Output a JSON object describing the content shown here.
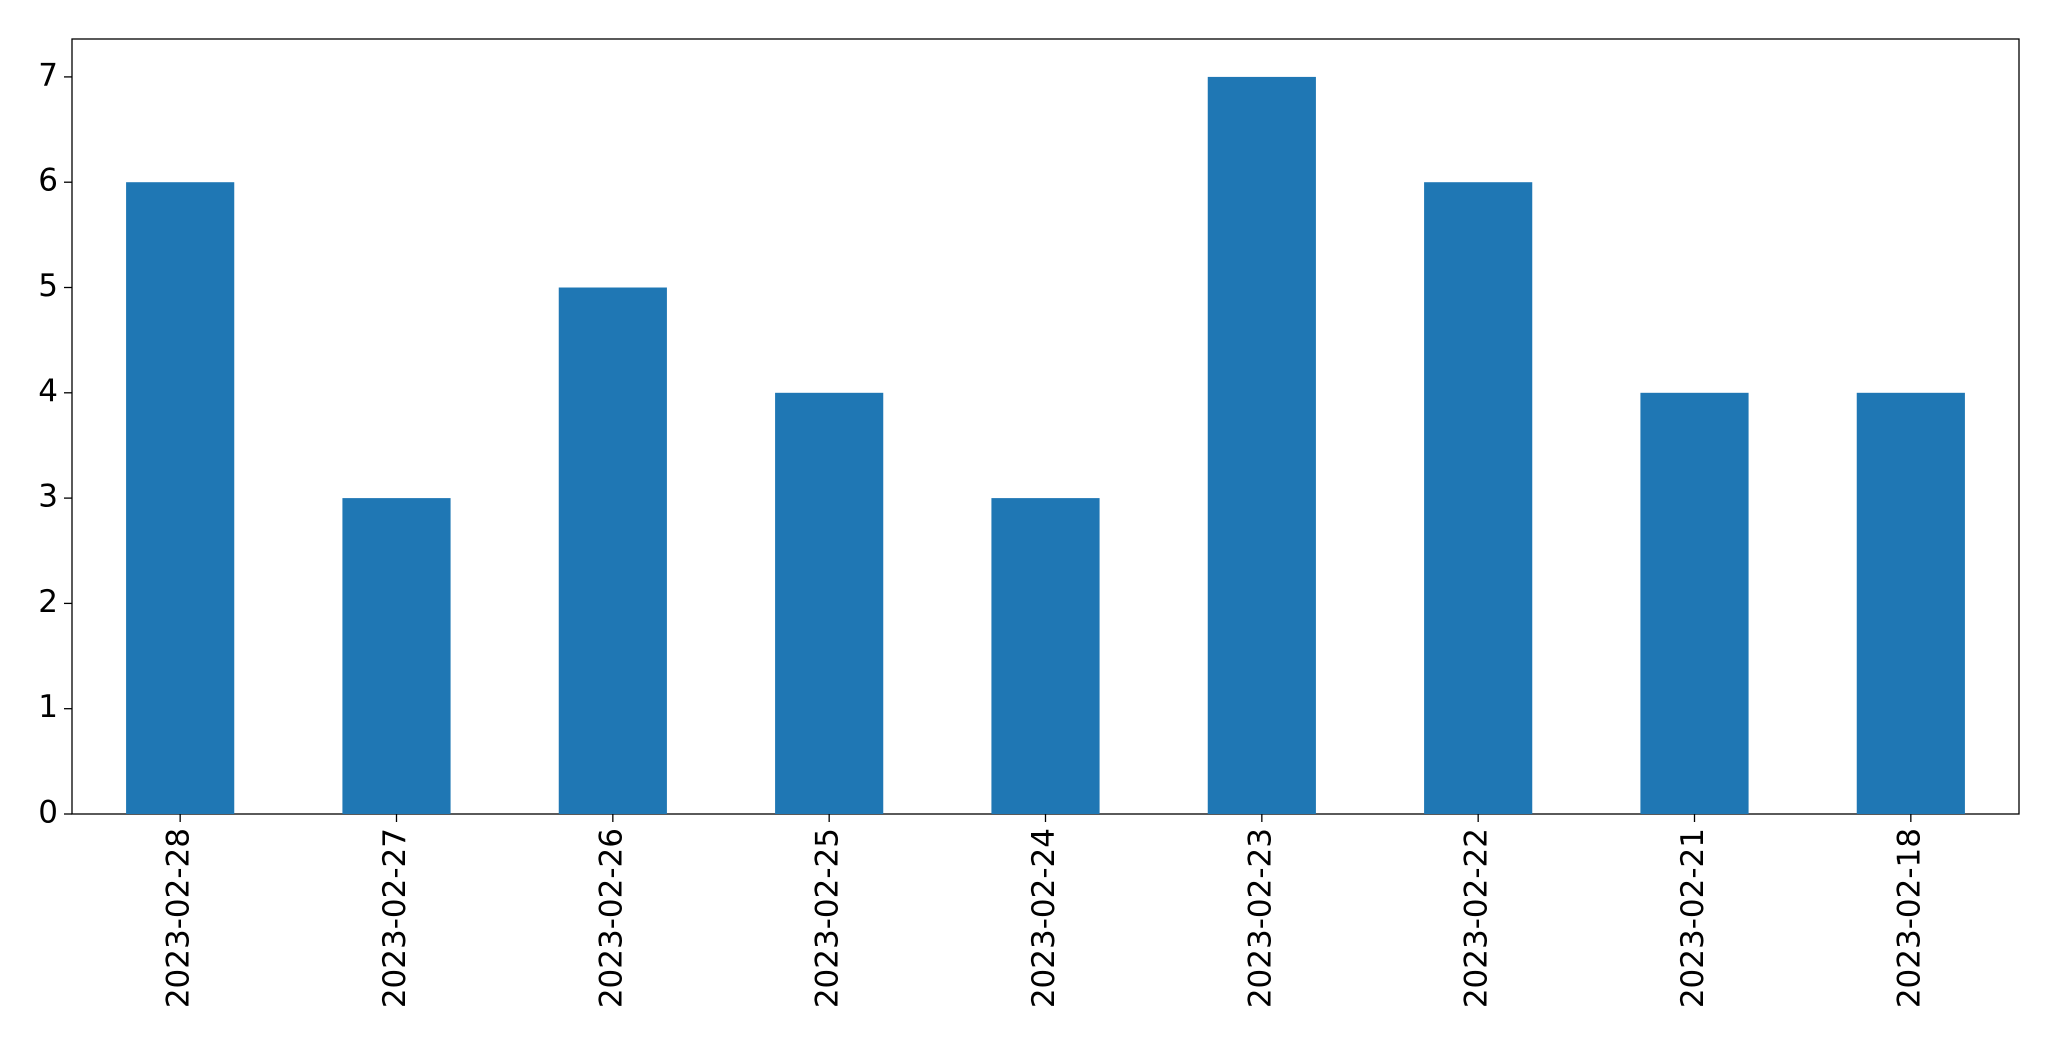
{
  "chart_data": {
    "type": "bar",
    "categories": [
      "2023-02-28",
      "2023-02-27",
      "2023-02-26",
      "2023-02-25",
      "2023-02-24",
      "2023-02-23",
      "2023-02-22",
      "2023-02-21",
      "2023-02-18"
    ],
    "values": [
      6,
      3,
      5,
      4,
      3,
      7,
      6,
      4,
      4
    ],
    "color": "#1f77b4",
    "ylim": [
      0,
      7.36
    ],
    "yticks": [
      0,
      1,
      2,
      3,
      4,
      5,
      6,
      7
    ],
    "grid": false
  }
}
